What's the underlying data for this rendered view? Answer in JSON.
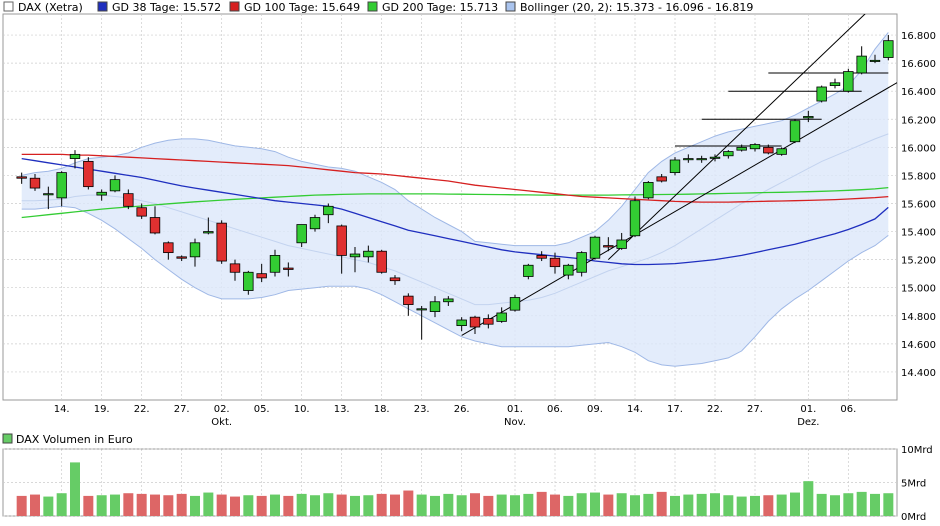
{
  "chart_data": {
    "type": "candlestick",
    "title": "DAX (Xetra)",
    "legend": [
      {
        "label": "DAX (Xetra)",
        "color": "#ffffff",
        "border": "#666666"
      },
      {
        "label": "GD 38 Tage: 15.572",
        "color": "#1f2fbf"
      },
      {
        "label": "GD 100 Tage: 15.649",
        "color": "#d62020"
      },
      {
        "label": "GD 200 Tage: 15.713",
        "color": "#33cc33"
      },
      {
        "label": "Bollinger (20, 2): 15.373 - 16.096 - 16.819",
        "color": "#aac4ee"
      }
    ],
    "y_ticks": [
      "16.800",
      "16.600",
      "16.400",
      "16.200",
      "16.000",
      "15.800",
      "15.600",
      "15.400",
      "15.200",
      "15.000",
      "14.800",
      "14.600",
      "14.400"
    ],
    "y_tick_values": [
      16800,
      16600,
      16400,
      16200,
      16000,
      15800,
      15600,
      15400,
      15200,
      15000,
      14800,
      14600,
      14400
    ],
    "ylim": [
      14200,
      16950
    ],
    "x_ticks": [
      "14.",
      "19.",
      "22.",
      "27.",
      "02.",
      "05.",
      "10.",
      "13.",
      "18.",
      "23.",
      "26.",
      "01.",
      "06.",
      "09.",
      "14.",
      "17.",
      "22.",
      "27.",
      "01.",
      "06."
    ],
    "x_tick_index": [
      3,
      6,
      9,
      12,
      15,
      18,
      21,
      24,
      27,
      30,
      33,
      37,
      40,
      43,
      46,
      49,
      52,
      55,
      59,
      62
    ],
    "month_labels": [
      {
        "label": "Okt.",
        "index": 15
      },
      {
        "label": "Nov.",
        "index": 37
      },
      {
        "label": "Dez.",
        "index": 59
      }
    ],
    "candles": [
      [
        15790,
        15820,
        15740,
        15780
      ],
      [
        15780,
        15810,
        15690,
        15710
      ],
      [
        15670,
        15720,
        15560,
        15670
      ],
      [
        15640,
        15830,
        15580,
        15820
      ],
      [
        15920,
        15980,
        15850,
        15950
      ],
      [
        15900,
        15930,
        15700,
        15720
      ],
      [
        15660,
        15700,
        15620,
        15680
      ],
      [
        15690,
        15800,
        15680,
        15770
      ],
      [
        15670,
        15700,
        15560,
        15580
      ],
      [
        15570,
        15600,
        15490,
        15510
      ],
      [
        15500,
        15580,
        15380,
        15390
      ],
      [
        15320,
        15330,
        15200,
        15250
      ],
      [
        15220,
        15230,
        15190,
        15210
      ],
      [
        15220,
        15350,
        15150,
        15320
      ],
      [
        15390,
        15500,
        15380,
        15400
      ],
      [
        15460,
        15480,
        15170,
        15190
      ],
      [
        15170,
        15200,
        15050,
        15110
      ],
      [
        14980,
        15120,
        14950,
        15110
      ],
      [
        15100,
        15170,
        15040,
        15070
      ],
      [
        15110,
        15270,
        15080,
        15230
      ],
      [
        15140,
        15180,
        15080,
        15130
      ],
      [
        15320,
        15450,
        15290,
        15450
      ],
      [
        15420,
        15520,
        15400,
        15500
      ],
      [
        15520,
        15600,
        15460,
        15580
      ],
      [
        15440,
        15450,
        15100,
        15230
      ],
      [
        15220,
        15290,
        15110,
        15240
      ],
      [
        15220,
        15300,
        15180,
        15260
      ],
      [
        15260,
        15270,
        15100,
        15110
      ],
      [
        15070,
        15090,
        15020,
        15050
      ],
      [
        14940,
        14960,
        14800,
        14880
      ],
      [
        14850,
        14870,
        14630,
        14850
      ],
      [
        14830,
        14940,
        14790,
        14900
      ],
      [
        14900,
        14940,
        14870,
        14920
      ],
      [
        14730,
        14790,
        14690,
        14770
      ],
      [
        14790,
        14800,
        14670,
        14720
      ],
      [
        14780,
        14810,
        14710,
        14740
      ],
      [
        14760,
        14860,
        14750,
        14820
      ],
      [
        14840,
        14950,
        14830,
        14930
      ],
      [
        15080,
        15170,
        15060,
        15160
      ],
      [
        15230,
        15260,
        15190,
        15210
      ],
      [
        15210,
        15250,
        15100,
        15150
      ],
      [
        15090,
        15170,
        15060,
        15160
      ],
      [
        15110,
        15260,
        15080,
        15250
      ],
      [
        15210,
        15370,
        15200,
        15360
      ],
      [
        15300,
        15360,
        15260,
        15290
      ],
      [
        15280,
        15390,
        15270,
        15340
      ],
      [
        15370,
        15650,
        15360,
        15620
      ],
      [
        15640,
        15760,
        15630,
        15750
      ],
      [
        15790,
        15810,
        15750,
        15760
      ],
      [
        15820,
        15930,
        15800,
        15910
      ],
      [
        15920,
        15950,
        15890,
        15920
      ],
      [
        15920,
        15940,
        15890,
        15920
      ],
      [
        15930,
        15950,
        15900,
        15930
      ],
      [
        15940,
        15980,
        15920,
        15970
      ],
      [
        15980,
        16020,
        15970,
        16000
      ],
      [
        15990,
        16030,
        15970,
        16020
      ],
      [
        16000,
        16020,
        15950,
        15960
      ],
      [
        15950,
        16000,
        15940,
        15990
      ],
      [
        16040,
        16200,
        16030,
        16190
      ],
      [
        16210,
        16260,
        16180,
        16220
      ],
      [
        16330,
        16440,
        16320,
        16430
      ],
      [
        16440,
        16490,
        16420,
        16460
      ],
      [
        16400,
        16560,
        16390,
        16540
      ],
      [
        16530,
        16720,
        16520,
        16650
      ],
      [
        16620,
        16660,
        16600,
        16620
      ],
      [
        16640,
        16800,
        16620,
        16760
      ]
    ],
    "gd38": [
      15920,
      15905,
      15890,
      15875,
      15860,
      15845,
      15830,
      15815,
      15800,
      15785,
      15765,
      15745,
      15725,
      15710,
      15695,
      15680,
      15665,
      15650,
      15635,
      15620,
      15610,
      15600,
      15590,
      15580,
      15560,
      15530,
      15500,
      15470,
      15440,
      15410,
      15390,
      15370,
      15350,
      15330,
      15310,
      15290,
      15270,
      15255,
      15245,
      15235,
      15225,
      15215,
      15205,
      15190,
      15180,
      15170,
      15165,
      15165,
      15168,
      15172,
      15180,
      15190,
      15200,
      15215,
      15230,
      15250,
      15270,
      15290,
      15310,
      15335,
      15360,
      15385,
      15415,
      15450,
      15490,
      15572
    ],
    "gd100": [
      15950,
      15950,
      15950,
      15950,
      15945,
      15945,
      15940,
      15935,
      15930,
      15925,
      15920,
      15915,
      15910,
      15905,
      15900,
      15895,
      15890,
      15885,
      15880,
      15875,
      15870,
      15860,
      15850,
      15840,
      15830,
      15820,
      15815,
      15810,
      15800,
      15790,
      15780,
      15770,
      15760,
      15745,
      15730,
      15720,
      15710,
      15700,
      15690,
      15680,
      15670,
      15660,
      15650,
      15645,
      15640,
      15635,
      15630,
      15625,
      15620,
      15615,
      15612,
      15610,
      15610,
      15610,
      15612,
      15614,
      15616,
      15618,
      15620,
      15622,
      15625,
      15628,
      15632,
      15637,
      15642,
      15649
    ],
    "gd200": [
      15500,
      15510,
      15520,
      15530,
      15540,
      15550,
      15560,
      15568,
      15575,
      15582,
      15590,
      15598,
      15605,
      15612,
      15618,
      15624,
      15630,
      15635,
      15640,
      15645,
      15650,
      15655,
      15660,
      15662,
      15665,
      15667,
      15668,
      15668,
      15668,
      15668,
      15668,
      15668,
      15667,
      15666,
      15665,
      15664,
      15663,
      15662,
      15661,
      15660,
      15660,
      15660,
      15660,
      15660,
      15660,
      15661,
      15662,
      15663,
      15664,
      15665,
      15666,
      15668,
      15670,
      15672,
      15674,
      15676,
      15678,
      15680,
      15682,
      15684,
      15687,
      15690,
      15694,
      15698,
      15704,
      15713
    ],
    "boll_upper": [
      15800,
      15820,
      15830,
      15850,
      15890,
      15920,
      15930,
      15940,
      15960,
      16000,
      16030,
      16050,
      16060,
      16060,
      16050,
      16030,
      16010,
      16000,
      15990,
      15970,
      15930,
      15900,
      15880,
      15860,
      15850,
      15830,
      15790,
      15750,
      15700,
      15620,
      15560,
      15500,
      15450,
      15400,
      15330,
      15320,
      15310,
      15300,
      15300,
      15300,
      15300,
      15320,
      15360,
      15400,
      15480,
      15580,
      15700,
      15820,
      15900,
      15960,
      16000,
      16040,
      16080,
      16110,
      16130,
      16150,
      16170,
      16190,
      16230,
      16280,
      16330,
      16380,
      16440,
      16550,
      16700,
      16819
    ],
    "boll_mid": [
      15620,
      15620,
      15625,
      15630,
      15650,
      15660,
      15660,
      15650,
      15640,
      15620,
      15600,
      15570,
      15540,
      15510,
      15480,
      15450,
      15420,
      15390,
      15360,
      15330,
      15300,
      15280,
      15260,
      15240,
      15220,
      15200,
      15180,
      15150,
      15120,
      15080,
      15040,
      15000,
      14960,
      14920,
      14880,
      14880,
      14890,
      14900,
      14910,
      14930,
      14960,
      15000,
      15040,
      15080,
      15120,
      15150,
      15180,
      15210,
      15250,
      15300,
      15360,
      15420,
      15480,
      15540,
      15600,
      15650,
      15700,
      15750,
      15800,
      15850,
      15900,
      15940,
      15980,
      16020,
      16060,
      16096
    ],
    "boll_lower": [
      15560,
      15560,
      15570,
      15580,
      15570,
      15530,
      15480,
      15420,
      15350,
      15280,
      15200,
      15130,
      15060,
      15000,
      14950,
      14920,
      14920,
      14920,
      14930,
      14950,
      14980,
      14990,
      15000,
      15010,
      15010,
      15010,
      14990,
      14950,
      14900,
      14850,
      14800,
      14750,
      14700,
      14650,
      14620,
      14600,
      14580,
      14580,
      14580,
      14580,
      14580,
      14580,
      14590,
      14600,
      14610,
      14580,
      14540,
      14480,
      14450,
      14440,
      14450,
      14460,
      14480,
      14500,
      14550,
      14650,
      14760,
      14850,
      14920,
      14980,
      15050,
      15120,
      15190,
      15250,
      15300,
      15373
    ],
    "horizontal_lines": [
      {
        "value": 16530,
        "from": 56,
        "to": 65
      },
      {
        "value": 16400,
        "from": 53,
        "to": 63
      },
      {
        "value": 16200,
        "from": 51,
        "to": 60
      },
      {
        "value": 16010,
        "from": 49,
        "to": 57
      }
    ],
    "trend_lines": [
      {
        "from": [
          33,
          14660
        ],
        "to": [
          66,
          16480
        ]
      },
      {
        "from": [
          44,
          15200
        ],
        "to": [
          66,
          17200
        ]
      }
    ],
    "volume": {
      "label": "DAX Volumen in Euro",
      "ticks": [
        "10Mrd",
        "5Mrd",
        "0Mrd"
      ],
      "tick_values": [
        10,
        5,
        0
      ],
      "ylim": [
        0,
        10
      ],
      "values": [
        3.0,
        3.2,
        2.9,
        3.4,
        8.0,
        3.0,
        3.1,
        3.2,
        3.4,
        3.3,
        3.2,
        3.1,
        3.3,
        3.0,
        3.5,
        3.2,
        2.9,
        3.1,
        3.0,
        3.2,
        3.0,
        3.3,
        3.1,
        3.4,
        3.2,
        3.0,
        3.1,
        3.3,
        3.2,
        3.8,
        3.2,
        3.0,
        3.3,
        3.1,
        3.4,
        3.0,
        3.2,
        3.1,
        3.3,
        3.6,
        3.2,
        3.0,
        3.4,
        3.5,
        3.2,
        3.4,
        3.1,
        3.3,
        3.6,
        3.0,
        3.2,
        3.3,
        3.4,
        3.1,
        2.9,
        3.0,
        3.1,
        3.2,
        3.5,
        5.2,
        3.3,
        3.1,
        3.4,
        3.6,
        3.3,
        3.4
      ],
      "up_color": "#66cc66",
      "down_color": "#dd6666"
    },
    "colors": {
      "up": "#33cc33",
      "down": "#e03030",
      "grid": "#cccccc",
      "band_fill": "#dce7fa",
      "trend": "#000000"
    }
  }
}
